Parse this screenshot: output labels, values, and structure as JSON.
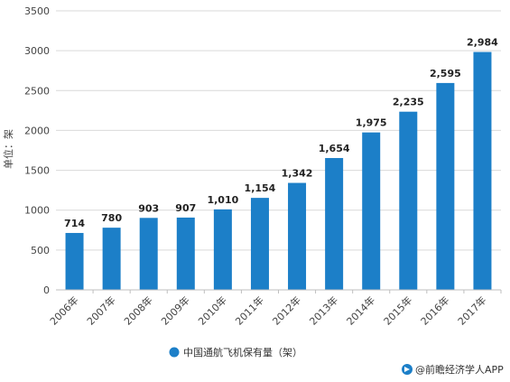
{
  "chart_data": {
    "type": "bar",
    "categories": [
      "2006年",
      "2007年",
      "2008年",
      "2009年",
      "2010年",
      "2011年",
      "2012年",
      "2013年",
      "2014年",
      "2015年",
      "2016年",
      "2017年"
    ],
    "series": [
      {
        "name": "中国通航飞机保有量（架）",
        "values": [
          714,
          780,
          903,
          907,
          1010,
          1154,
          1342,
          1654,
          1975,
          2235,
          2595,
          2984
        ],
        "value_labels": [
          "714",
          "780",
          "903",
          "907",
          "1,010",
          "1,154",
          "1,342",
          "1,654",
          "1,975",
          "2,235",
          "2,595",
          "2,984"
        ]
      }
    ],
    "ylabel": "单位：架",
    "ylim": [
      0,
      3500
    ],
    "yticks": [
      "0",
      "500",
      "1000",
      "1500",
      "2000",
      "2500",
      "3000",
      "3500"
    ],
    "grid": true,
    "legend": "bottom",
    "colors": {
      "bar": "#1c7fc8",
      "grid": "#d9d9d9",
      "axis": "#bfbfbf"
    }
  },
  "source": {
    "text": "@前瞻经济学人APP",
    "icon": "brand-logo-icon"
  }
}
